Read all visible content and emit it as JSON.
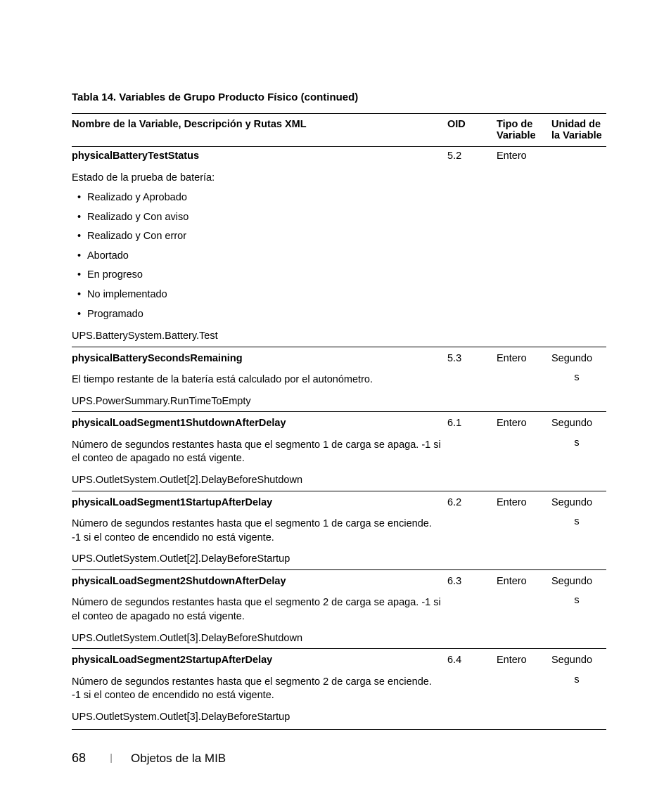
{
  "title": "Tabla 14. Variables de Grupo Producto Físico (continued)",
  "headers": {
    "name": "Nombre de la Variable, Descripción y Rutas XML",
    "oid": "OID",
    "tipo": "Tipo de Variable",
    "unit": "Unidad de la Variable"
  },
  "rows": [
    {
      "varname": "physicalBatteryTestStatus",
      "oid": "5.2",
      "tipo": "Entero",
      "unit": "",
      "intro": "Estado de la prueba de batería:",
      "bullets": [
        "Realizado y Aprobado",
        "Realizado y Con aviso",
        "Realizado y Con error",
        "Abortado",
        "En progreso",
        "No implementado",
        "Programado"
      ],
      "xml": "UPS.BatterySystem.Battery.Test"
    },
    {
      "varname": "physicalBatterySecondsRemaining",
      "oid": "5.3",
      "tipo": "Entero",
      "unit": "Segundos",
      "desc": "El tiempo restante de la batería está calculado por el autonómetro.",
      "xml": "UPS.PowerSummary.RunTimeToEmpty"
    },
    {
      "varname": "physicalLoadSegment1ShutdownAfterDelay",
      "oid": "6.1",
      "tipo": "Entero",
      "unit": "Segundos",
      "desc": "Número de segundos restantes hasta que el segmento 1 de carga se apaga. -1 si el conteo de apagado no está vigente.",
      "xml": "UPS.OutletSystem.Outlet[2].DelayBeforeShutdown"
    },
    {
      "varname": "physicalLoadSegment1StartupAfterDelay",
      "oid": "6.2",
      "tipo": "Entero",
      "unit": "Segundos",
      "desc": "Número de segundos restantes hasta que el segmento 1 de carga se enciende. -1 si el conteo de encendido no está vigente.",
      "xml": "UPS.OutletSystem.Outlet[2].DelayBeforeStartup"
    },
    {
      "varname": "physicalLoadSegment2ShutdownAfterDelay",
      "oid": "6.3",
      "tipo": "Entero",
      "unit": "Segundos",
      "desc": "Número de segundos restantes hasta que el segmento 2 de carga se apaga. -1 si el conteo de apagado no está vigente.",
      "xml": "UPS.OutletSystem.Outlet[3].DelayBeforeShutdown"
    },
    {
      "varname": "physicalLoadSegment2StartupAfterDelay",
      "oid": "6.4",
      "tipo": "Entero",
      "unit": "Segundos",
      "desc": "Número de segundos restantes hasta que el segmento 2 de carga se enciende. -1 si el conteo de encendido no está vigente.",
      "xml": "UPS.OutletSystem.Outlet[3].DelayBeforeStartup"
    }
  ],
  "footer": {
    "page": "68",
    "section": "Objetos de la MIB"
  }
}
